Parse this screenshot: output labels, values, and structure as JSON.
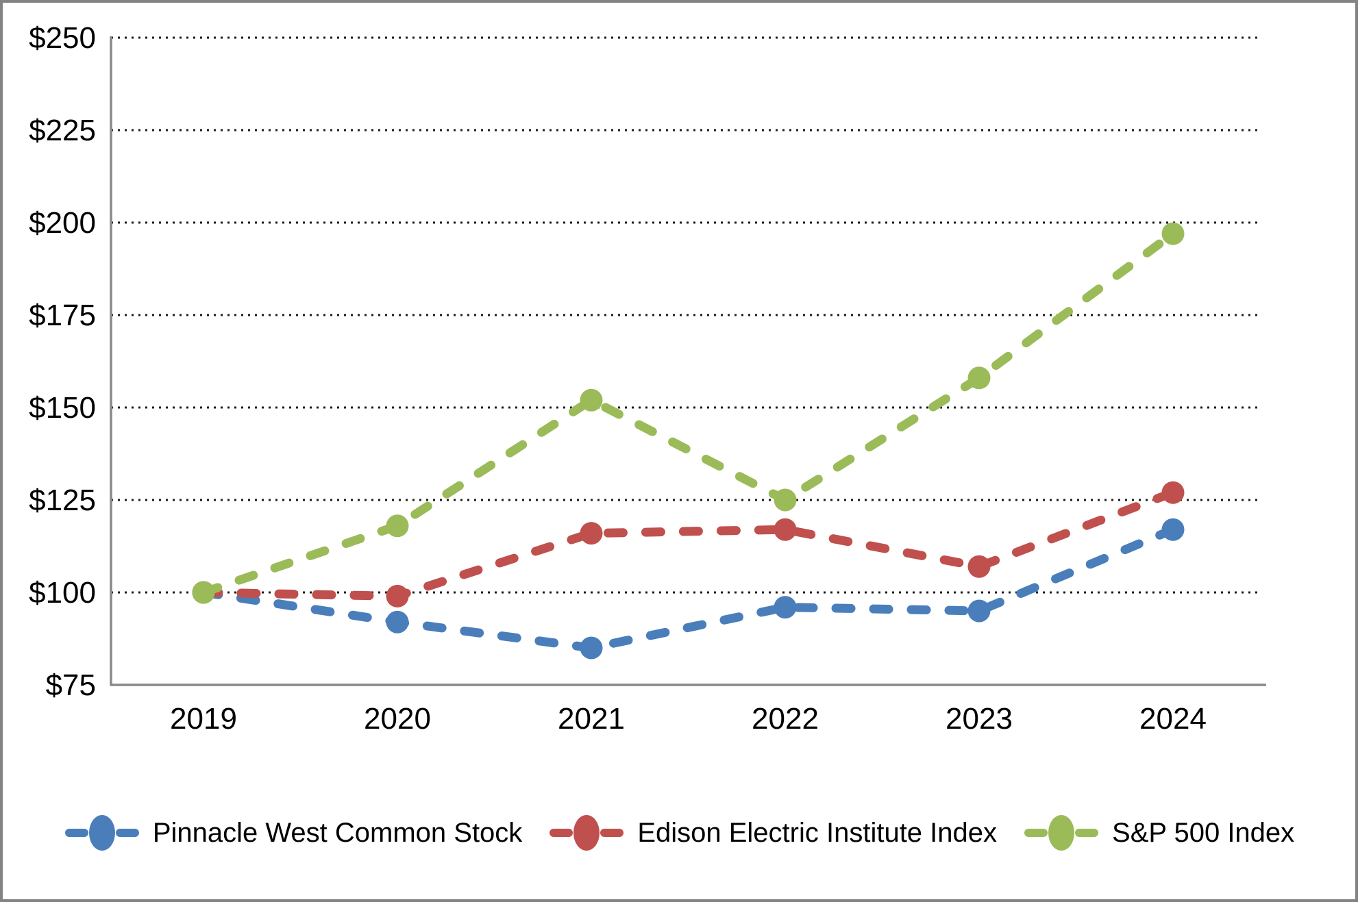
{
  "chart_data": {
    "type": "line",
    "title": "",
    "xlabel": "",
    "ylabel": "",
    "x_categories": [
      "2019",
      "2020",
      "2021",
      "2022",
      "2023",
      "2024"
    ],
    "y_tick_labels": [
      "$250",
      "$225",
      "$200",
      "$175",
      "$150",
      "$125",
      "$100",
      "$75"
    ],
    "y_tick_values": [
      250,
      225,
      200,
      175,
      150,
      125,
      100,
      75
    ],
    "ylim": [
      75,
      250
    ],
    "grid": "horizontal dotted gridlines at each $25 step, none at $75 baseline",
    "line_style": "thick dashed with round caps",
    "marker": "circle",
    "legend_position": "bottom-center",
    "series": [
      {
        "name": "Pinnacle West Common Stock",
        "color": "#4A7EBB",
        "values": [
          100,
          92,
          85,
          96,
          95,
          117
        ]
      },
      {
        "name": "Edison Electric Institute Index",
        "color": "#C0504D",
        "values": [
          100,
          99,
          116,
          117,
          107,
          127
        ]
      },
      {
        "name": "S&P 500 Index",
        "color": "#9BBB59",
        "values": [
          100,
          118,
          152,
          125,
          158,
          197
        ]
      }
    ]
  },
  "legend": {
    "items": [
      {
        "label": "Pinnacle West Common Stock",
        "color": "#4A7EBB"
      },
      {
        "label": "Edison Electric Institute Index",
        "color": "#C0504D"
      },
      {
        "label": "S&P 500 Index",
        "color": "#9BBB59"
      }
    ]
  },
  "colors": {
    "background": "#FFFFFF",
    "frame_border": "#838383",
    "axis_line": "#898989",
    "gridline": "#1A1A1A",
    "tick_text": "#000000"
  }
}
